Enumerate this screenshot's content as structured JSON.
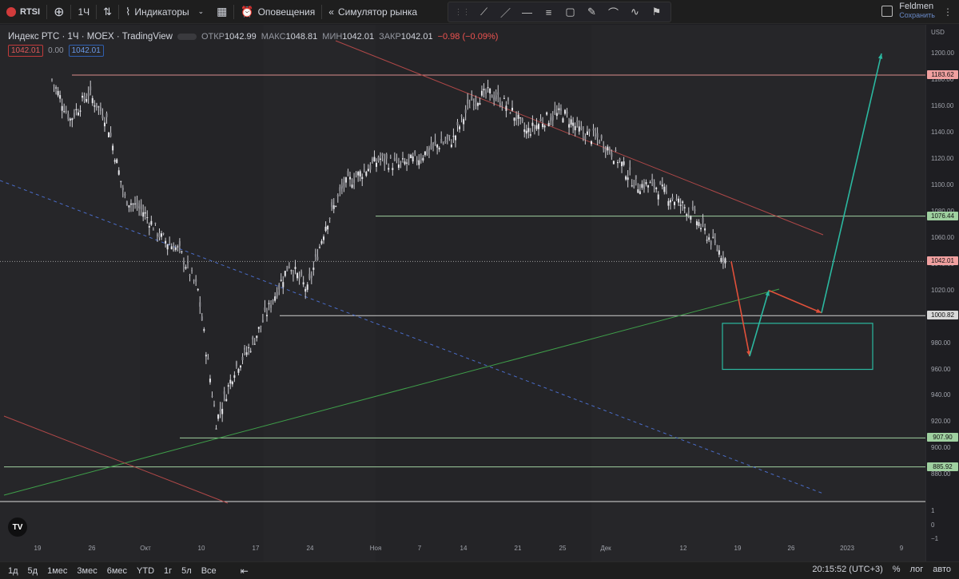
{
  "toolbar": {
    "symbol": "RTSI",
    "interval": "1Ч",
    "indicators_label": "Индикаторы",
    "alerts_label": "Оповещения",
    "replay_label": "Симулятор рынка",
    "user_name": "Feldmen",
    "save_label": "Сохранить"
  },
  "legend": {
    "title": "Индекс РТС · 1Ч · MOEX · TradingView",
    "open_label": "ОТКР",
    "open": "1042.99",
    "high_label": "МАКС",
    "high": "1048.81",
    "low_label": "МИН",
    "low": "1042.01",
    "close_label": "ЗАКР",
    "close": "1042.01",
    "change": "−0.98 (−0.09%)",
    "badge_sell": "1042.01",
    "badge_spread": "0.00",
    "badge_buy": "1042.01"
  },
  "price_axis": {
    "currency": "USD",
    "ticks": [
      "1200.00",
      "1180.00",
      "1160.00",
      "1140.00",
      "1120.00",
      "1100.00",
      "1080.00",
      "1060.00",
      "1040.00",
      "1020.00",
      "1000.00",
      "980.00",
      "960.00",
      "940.00",
      "920.00",
      "900.00",
      "880.00"
    ],
    "tick_values": [
      1200,
      1180,
      1160,
      1140,
      1120,
      1100,
      1080,
      1060,
      1040,
      1020,
      1000,
      980,
      960,
      940,
      920,
      900,
      880
    ],
    "volume_ticks": [
      "1",
      "0",
      "−1"
    ],
    "levels": [
      {
        "value": 1183.62,
        "label": "1183.62",
        "color": "#f0a0a0"
      },
      {
        "value": 1076.44,
        "label": "1076.44",
        "color": "#9fd0a0"
      },
      {
        "value": 1042.01,
        "label": "1042.01",
        "color": "#f0a0a0"
      },
      {
        "value": 1000.82,
        "label": "1000.82",
        "color": "#d8d8d8"
      },
      {
        "value": 907.9,
        "label": "907.90",
        "color": "#9fd0a0"
      },
      {
        "value": 885.92,
        "label": "885.92",
        "color": "#9fd0a0"
      }
    ]
  },
  "time_axis": {
    "labels": [
      "19",
      "26",
      "Окт",
      "10",
      "17",
      "24",
      "Ноя",
      "7",
      "14",
      "21",
      "25",
      "Дек",
      "12",
      "19",
      "26",
      "2023",
      "9"
    ]
  },
  "bottom": {
    "ranges": [
      "1д",
      "5д",
      "1мес",
      "3мес",
      "6мес",
      "YTD",
      "1г",
      "5л",
      "Все"
    ],
    "clock": "20:15:52 (UTC+3)",
    "percent": "%",
    "log": "лог",
    "auto": "авто"
  },
  "chart_data": {
    "type": "candlestick",
    "symbol": "Индекс РТС",
    "interval": "1H",
    "price_range": [
      870,
      1210
    ],
    "points": [
      {
        "t": "Sep 19",
        "p": 1180
      },
      {
        "t": "Sep 21",
        "p": 1150
      },
      {
        "t": "Sep 23",
        "p": 1170
      },
      {
        "t": "Sep 26",
        "p": 1150
      },
      {
        "t": "Sep 28",
        "p": 1090
      },
      {
        "t": "Sep 30",
        "p": 1080
      },
      {
        "t": "Oct 3",
        "p": 1060
      },
      {
        "t": "Oct 5",
        "p": 1050
      },
      {
        "t": "Oct 7",
        "p": 1020
      },
      {
        "t": "Oct 10",
        "p": 920
      },
      {
        "t": "Oct 12",
        "p": 960
      },
      {
        "t": "Oct 14",
        "p": 980
      },
      {
        "t": "Oct 17",
        "p": 1010
      },
      {
        "t": "Oct 19",
        "p": 1040
      },
      {
        "t": "Oct 21",
        "p": 1020
      },
      {
        "t": "Oct 24",
        "p": 1070
      },
      {
        "t": "Oct 26",
        "p": 1100
      },
      {
        "t": "Oct 28",
        "p": 1110
      },
      {
        "t": "Nov 1",
        "p": 1120
      },
      {
        "t": "Nov 3",
        "p": 1115
      },
      {
        "t": "Nov 7",
        "p": 1120
      },
      {
        "t": "Nov 9",
        "p": 1130
      },
      {
        "t": "Nov 11",
        "p": 1135
      },
      {
        "t": "Nov 14",
        "p": 1165
      },
      {
        "t": "Nov 16",
        "p": 1170
      },
      {
        "t": "Nov 18",
        "p": 1160
      },
      {
        "t": "Nov 21",
        "p": 1140
      },
      {
        "t": "Nov 23",
        "p": 1150
      },
      {
        "t": "Nov 25",
        "p": 1155
      },
      {
        "t": "Nov 28",
        "p": 1140
      },
      {
        "t": "Dec 1",
        "p": 1135
      },
      {
        "t": "Dec 5",
        "p": 1120
      },
      {
        "t": "Dec 7",
        "p": 1100
      },
      {
        "t": "Dec 9",
        "p": 1100
      },
      {
        "t": "Dec 12",
        "p": 1090
      },
      {
        "t": "Dec 14",
        "p": 1080
      },
      {
        "t": "Dec 16",
        "p": 1060
      },
      {
        "t": "Dec 17",
        "p": 1042
      }
    ],
    "annotations": {
      "forecast_path": [
        1042,
        970,
        1020,
        1003,
        1200
      ],
      "target_zone": [
        960,
        995
      ]
    }
  }
}
